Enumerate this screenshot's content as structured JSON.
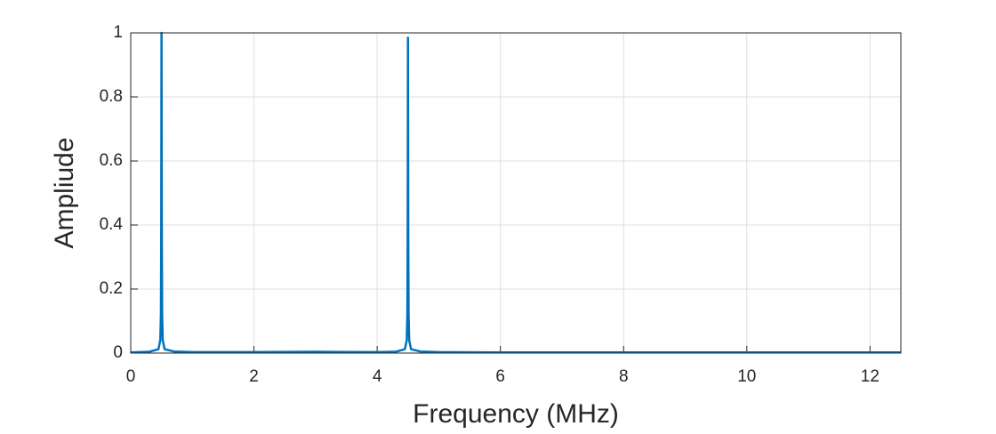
{
  "chart_data": {
    "type": "line",
    "xlabel": "Frequency (MHz)",
    "ylabel": "Ampliude",
    "x": [
      0,
      0.3,
      0.45,
      0.48,
      0.49,
      0.495,
      0.5,
      0.505,
      0.51,
      0.52,
      0.55,
      0.7,
      1,
      2,
      3,
      4,
      4.3,
      4.45,
      4.48,
      4.49,
      4.495,
      4.5,
      4.505,
      4.51,
      4.52,
      4.55,
      4.7,
      5,
      6,
      8,
      10,
      12,
      12.5
    ],
    "series": [
      {
        "name": "Amplitude",
        "color": "#0072bd",
        "values": [
          0.002,
          0.004,
          0.012,
          0.04,
          0.12,
          0.35,
          1,
          0.35,
          0.12,
          0.04,
          0.012,
          0.005,
          0.003,
          0.003,
          0.004,
          0.003,
          0.004,
          0.012,
          0.04,
          0.12,
          0.35,
          0.985,
          0.35,
          0.12,
          0.04,
          0.012,
          0.005,
          0.003,
          0.002,
          0.002,
          0.002,
          0.002,
          0.002
        ]
      }
    ],
    "xlim": [
      0,
      12.5
    ],
    "ylim": [
      0,
      1
    ],
    "xticks": [
      0,
      2,
      4,
      6,
      8,
      10,
      12
    ],
    "yticks": [
      0,
      0.2,
      0.4,
      0.6,
      0.8,
      1
    ],
    "grid": true
  }
}
